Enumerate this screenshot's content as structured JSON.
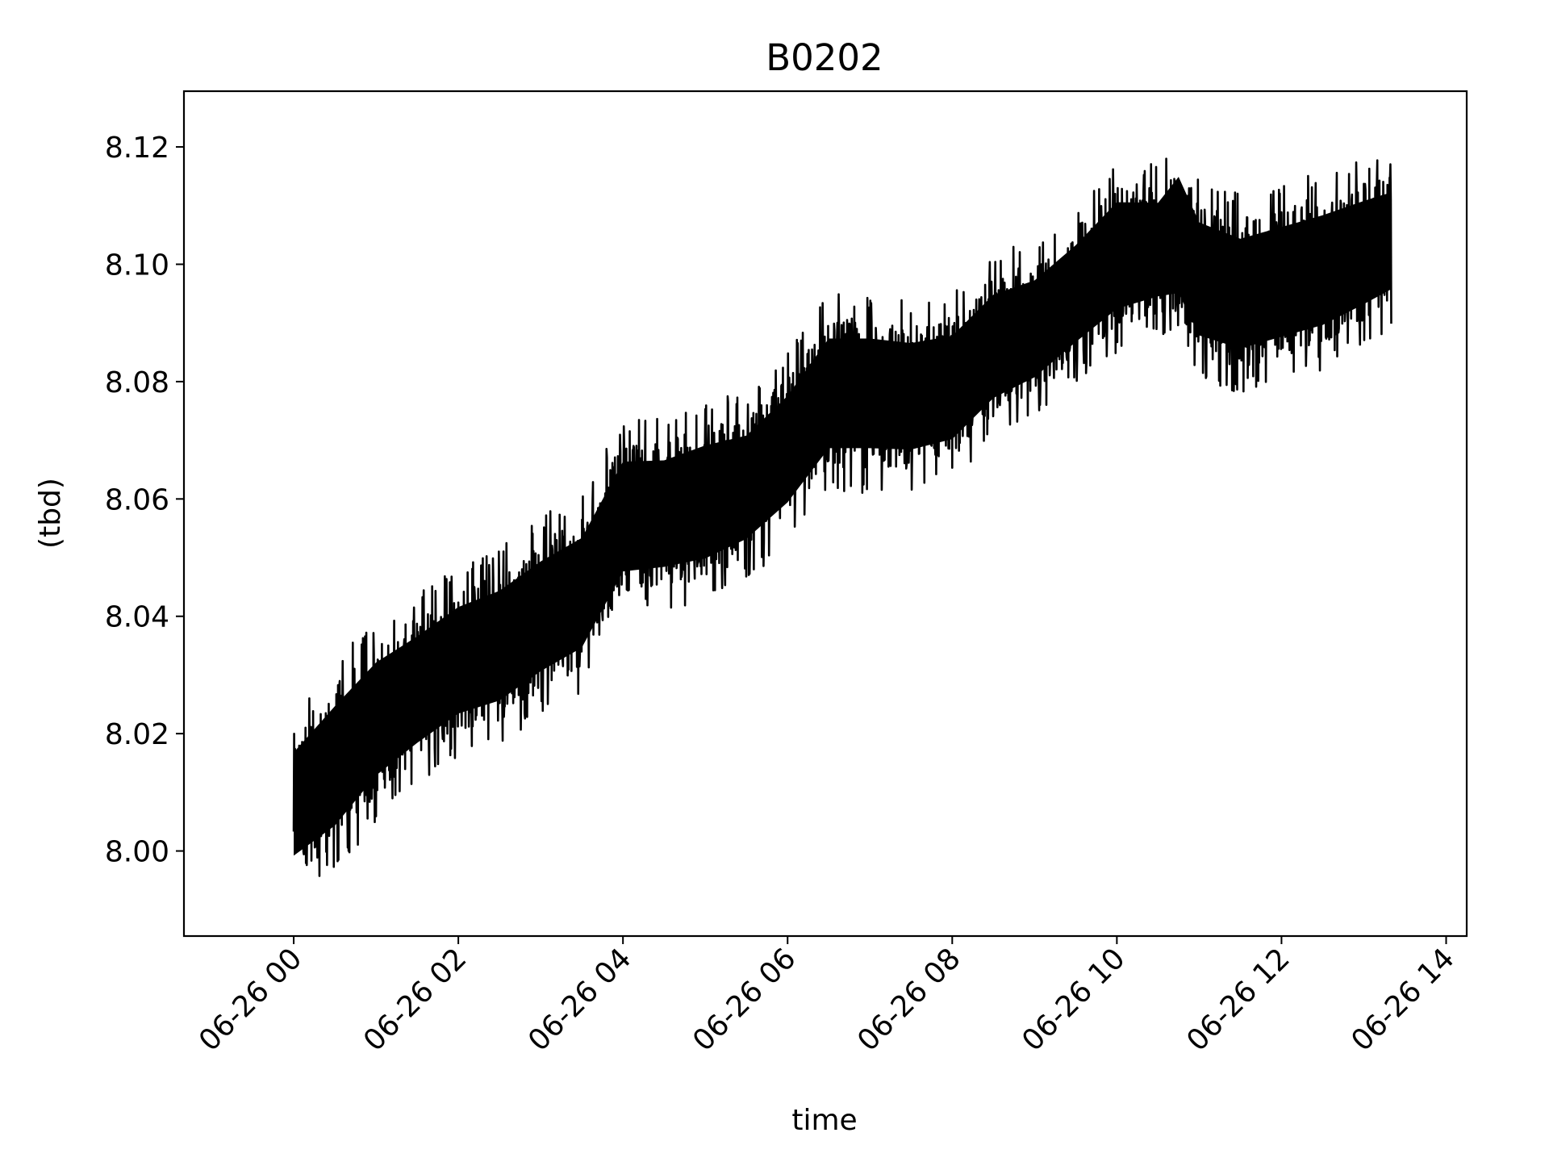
{
  "chart_data": {
    "type": "line",
    "title": "B0202",
    "xlabel": "time",
    "ylabel": "(tbd)",
    "x_range": [
      "06-25 22:40",
      "06-26 14:15"
    ],
    "ylim": [
      7.9855,
      8.1295
    ],
    "grid": false,
    "legend": "none",
    "line_color": "#000000",
    "x_ticks": [
      {
        "value": "06-26 00:00",
        "label": "06-26 00"
      },
      {
        "value": "06-26 02:00",
        "label": "06-26 02"
      },
      {
        "value": "06-26 04:00",
        "label": "06-26 04"
      },
      {
        "value": "06-26 06:00",
        "label": "06-26 06"
      },
      {
        "value": "06-26 08:00",
        "label": "06-26 08"
      },
      {
        "value": "06-26 10:00",
        "label": "06-26 10"
      },
      {
        "value": "06-26 12:00",
        "label": "06-26 12"
      },
      {
        "value": "06-26 14:00",
        "label": "06-26 14"
      }
    ],
    "y_ticks": [
      {
        "value": 8.0,
        "label": "8.00"
      },
      {
        "value": 8.02,
        "label": "8.02"
      },
      {
        "value": 8.04,
        "label": "8.04"
      },
      {
        "value": 8.06,
        "label": "8.06"
      },
      {
        "value": 8.08,
        "label": "8.08"
      },
      {
        "value": 8.1,
        "label": "8.10"
      },
      {
        "value": 8.12,
        "label": "8.12"
      }
    ],
    "series": [
      {
        "x_start": "06-26 00:00",
        "x_end": "06-26 13:20",
        "envelope": [
          {
            "x": "06-26 00:00",
            "low": 7.992,
            "high": 8.024
          },
          {
            "x": "06-26 00:30",
            "low": 7.996,
            "high": 8.033
          },
          {
            "x": "06-26 01:00",
            "low": 8.005,
            "high": 8.04
          },
          {
            "x": "06-26 01:30",
            "low": 8.011,
            "high": 8.044
          },
          {
            "x": "06-26 02:00",
            "low": 8.016,
            "high": 8.049
          },
          {
            "x": "06-26 02:30",
            "low": 8.018,
            "high": 8.052
          },
          {
            "x": "06-26 03:00",
            "low": 8.023,
            "high": 8.057
          },
          {
            "x": "06-26 03:30",
            "low": 8.027,
            "high": 8.061
          },
          {
            "x": "06-26 04:00",
            "low": 8.04,
            "high": 8.074
          },
          {
            "x": "06-26 04:30",
            "low": 8.041,
            "high": 8.074
          },
          {
            "x": "06-26 05:00",
            "low": 8.042,
            "high": 8.077
          },
          {
            "x": "06-26 05:30",
            "low": 8.046,
            "high": 8.078
          },
          {
            "x": "06-26 06:00",
            "low": 8.052,
            "high": 8.085
          },
          {
            "x": "06-26 06:30",
            "low": 8.061,
            "high": 8.095
          },
          {
            "x": "06-26 07:00",
            "low": 8.061,
            "high": 8.095
          },
          {
            "x": "06-26 07:30",
            "low": 8.061,
            "high": 8.094
          },
          {
            "x": "06-26 08:00",
            "low": 8.063,
            "high": 8.095
          },
          {
            "x": "06-26 08:30",
            "low": 8.07,
            "high": 8.102
          },
          {
            "x": "06-26 09:00",
            "low": 8.074,
            "high": 8.104
          },
          {
            "x": "06-26 09:30",
            "low": 8.08,
            "high": 8.11
          },
          {
            "x": "06-26 10:00",
            "low": 8.085,
            "high": 8.118
          },
          {
            "x": "06-26 10:30",
            "low": 8.088,
            "high": 8.117
          },
          {
            "x": "06-26 10:45",
            "low": 8.087,
            "high": 8.123
          },
          {
            "x": "06-26 11:00",
            "low": 8.08,
            "high": 8.115
          },
          {
            "x": "06-26 11:30",
            "low": 8.078,
            "high": 8.112
          },
          {
            "x": "06-26 12:00",
            "low": 8.08,
            "high": 8.114
          },
          {
            "x": "06-26 12:30",
            "low": 8.082,
            "high": 8.116
          },
          {
            "x": "06-26 13:00",
            "low": 8.086,
            "high": 8.118
          },
          {
            "x": "06-26 13:20",
            "low": 8.089,
            "high": 8.119
          }
        ]
      }
    ]
  }
}
